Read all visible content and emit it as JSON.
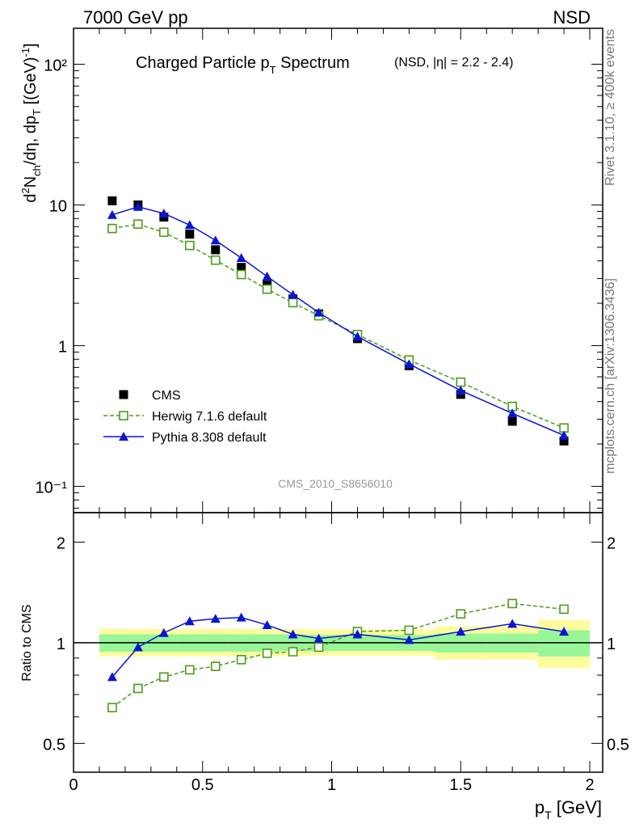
{
  "header": {
    "left": "7000 GeV pp",
    "right": "NSD"
  },
  "side_text": {
    "rivet": "Rivet 3.1.10, ≥ 400k events",
    "mcplots": "mcplots.cern.ch [arXiv:1306.3436]"
  },
  "analysis_id": "CMS_2010_S8656010",
  "colors": {
    "cms": "#000000",
    "herwig": "#4d9a1a",
    "pythia": "#0a14d6",
    "band_inner": "#98f598",
    "band_outer": "#fcfc9c"
  },
  "chart_data": [
    {
      "type": "scatter",
      "title": "Charged Particle p_T Spectrum",
      "title_main": "Charged Particle p",
      "title_sub": "T",
      "title_tail": " Spectrum",
      "title_detail": "(NSD, |η| = 2.2 - 2.4)",
      "ylabel": "d²N_ch/dη, dp_T [(GeV)⁻¹]",
      "yscale": "log",
      "xlim": [
        0,
        2.05
      ],
      "ylim": [
        0.065,
        180
      ],
      "y_ticks": [
        {
          "value": 100,
          "label": "10²"
        },
        {
          "value": 10,
          "label": "10"
        },
        {
          "value": 1,
          "label": "1"
        },
        {
          "value": 0.1,
          "label": "10⁻¹"
        }
      ],
      "legend_position": "bottom-left",
      "legend": [
        {
          "key": "cms",
          "label": "CMS"
        },
        {
          "key": "herwig",
          "label": "Herwig 7.1.6 default"
        },
        {
          "key": "pythia",
          "label": "Pythia 8.308 default"
        }
      ],
      "series": [
        {
          "key": "cms",
          "name": "CMS",
          "marker": "filled-square",
          "x": [
            0.15,
            0.25,
            0.35,
            0.45,
            0.55,
            0.65,
            0.75,
            0.85,
            0.95,
            1.1,
            1.3,
            1.5,
            1.7,
            1.9
          ],
          "y": [
            10.7,
            10.0,
            8.2,
            6.2,
            4.8,
            3.6,
            2.7,
            2.15,
            1.68,
            1.12,
            0.72,
            0.45,
            0.29,
            0.21
          ]
        },
        {
          "key": "herwig",
          "name": "Herwig 7.1.6 default",
          "marker": "open-square",
          "line": "dashed",
          "x": [
            0.15,
            0.25,
            0.35,
            0.45,
            0.55,
            0.65,
            0.75,
            0.85,
            0.95,
            1.1,
            1.3,
            1.5,
            1.7,
            1.9
          ],
          "y": [
            6.8,
            7.3,
            6.4,
            5.15,
            4.05,
            3.2,
            2.52,
            2.02,
            1.63,
            1.2,
            0.79,
            0.55,
            0.37,
            0.26
          ]
        },
        {
          "key": "pythia",
          "name": "Pythia 8.308 default",
          "marker": "filled-triangle",
          "line": "solid",
          "x": [
            0.15,
            0.25,
            0.35,
            0.45,
            0.55,
            0.65,
            0.75,
            0.85,
            0.95,
            1.1,
            1.3,
            1.5,
            1.7,
            1.9
          ],
          "y": [
            8.5,
            9.7,
            8.7,
            7.2,
            5.6,
            4.2,
            3.1,
            2.3,
            1.72,
            1.16,
            0.74,
            0.48,
            0.33,
            0.23
          ]
        }
      ]
    },
    {
      "type": "scatter",
      "title": "",
      "ylabel": "Ratio to CMS",
      "xlabel": "p_T [GeV]",
      "xlabel_main": "p",
      "xlabel_sub": "T",
      "xlabel_tail": " [GeV]",
      "yscale": "log",
      "xlim": [
        0,
        2.05
      ],
      "ylim": [
        0.41,
        2.45
      ],
      "x_ticks": [
        {
          "value": 0,
          "label": "0"
        },
        {
          "value": 0.5,
          "label": "0.5"
        },
        {
          "value": 1,
          "label": "1"
        },
        {
          "value": 1.5,
          "label": "1.5"
        },
        {
          "value": 2,
          "label": "2"
        }
      ],
      "y_ticks": [
        {
          "value": 2,
          "label": "2"
        },
        {
          "value": 1,
          "label": "1"
        },
        {
          "value": 0.5,
          "label": "0.5"
        }
      ],
      "reference_line": 1,
      "bins": [
        {
          "lo": 0.1,
          "hi": 0.2,
          "inner": [
            0.94,
            1.06
          ],
          "outer": [
            0.91,
            1.1
          ]
        },
        {
          "lo": 0.2,
          "hi": 0.3,
          "inner": [
            0.94,
            1.06
          ],
          "outer": [
            0.91,
            1.1
          ]
        },
        {
          "lo": 0.3,
          "hi": 0.4,
          "inner": [
            0.94,
            1.06
          ],
          "outer": [
            0.91,
            1.1
          ]
        },
        {
          "lo": 0.4,
          "hi": 0.5,
          "inner": [
            0.94,
            1.06
          ],
          "outer": [
            0.91,
            1.1
          ]
        },
        {
          "lo": 0.5,
          "hi": 0.6,
          "inner": [
            0.94,
            1.06
          ],
          "outer": [
            0.91,
            1.1
          ]
        },
        {
          "lo": 0.6,
          "hi": 0.7,
          "inner": [
            0.94,
            1.06
          ],
          "outer": [
            0.91,
            1.1
          ]
        },
        {
          "lo": 0.7,
          "hi": 0.8,
          "inner": [
            0.94,
            1.06
          ],
          "outer": [
            0.91,
            1.1
          ]
        },
        {
          "lo": 0.8,
          "hi": 0.9,
          "inner": [
            0.945,
            1.06
          ],
          "outer": [
            0.915,
            1.1
          ]
        },
        {
          "lo": 0.9,
          "hi": 1.0,
          "inner": [
            0.945,
            1.055
          ],
          "outer": [
            0.915,
            1.095
          ]
        },
        {
          "lo": 1.0,
          "hi": 1.2,
          "inner": [
            0.945,
            1.055
          ],
          "outer": [
            0.915,
            1.095
          ]
        },
        {
          "lo": 1.2,
          "hi": 1.4,
          "inner": [
            0.945,
            1.055
          ],
          "outer": [
            0.915,
            1.095
          ]
        },
        {
          "lo": 1.4,
          "hi": 1.6,
          "inner": [
            0.935,
            1.065
          ],
          "outer": [
            0.89,
            1.12
          ]
        },
        {
          "lo": 1.6,
          "hi": 1.8,
          "inner": [
            0.935,
            1.065
          ],
          "outer": [
            0.89,
            1.12
          ]
        },
        {
          "lo": 1.8,
          "hi": 2.0,
          "inner": [
            0.91,
            1.09
          ],
          "outer": [
            0.84,
            1.17
          ]
        }
      ],
      "series": [
        {
          "key": "herwig",
          "name": "Herwig 7.1.6 default",
          "marker": "open-square",
          "line": "dashed",
          "x": [
            0.15,
            0.25,
            0.35,
            0.45,
            0.55,
            0.65,
            0.75,
            0.85,
            0.95,
            1.1,
            1.3,
            1.5,
            1.7,
            1.9
          ],
          "y": [
            0.64,
            0.73,
            0.79,
            0.83,
            0.85,
            0.89,
            0.93,
            0.94,
            0.97,
            1.08,
            1.09,
            1.22,
            1.31,
            1.26
          ]
        },
        {
          "key": "pythia",
          "name": "Pythia 8.308 default",
          "marker": "filled-triangle",
          "line": "solid",
          "x": [
            0.15,
            0.25,
            0.35,
            0.45,
            0.55,
            0.65,
            0.75,
            0.85,
            0.95,
            1.1,
            1.3,
            1.5,
            1.7,
            1.9
          ],
          "y": [
            0.79,
            0.97,
            1.07,
            1.16,
            1.18,
            1.19,
            1.13,
            1.06,
            1.03,
            1.06,
            1.02,
            1.08,
            1.14,
            1.08
          ]
        }
      ]
    }
  ]
}
